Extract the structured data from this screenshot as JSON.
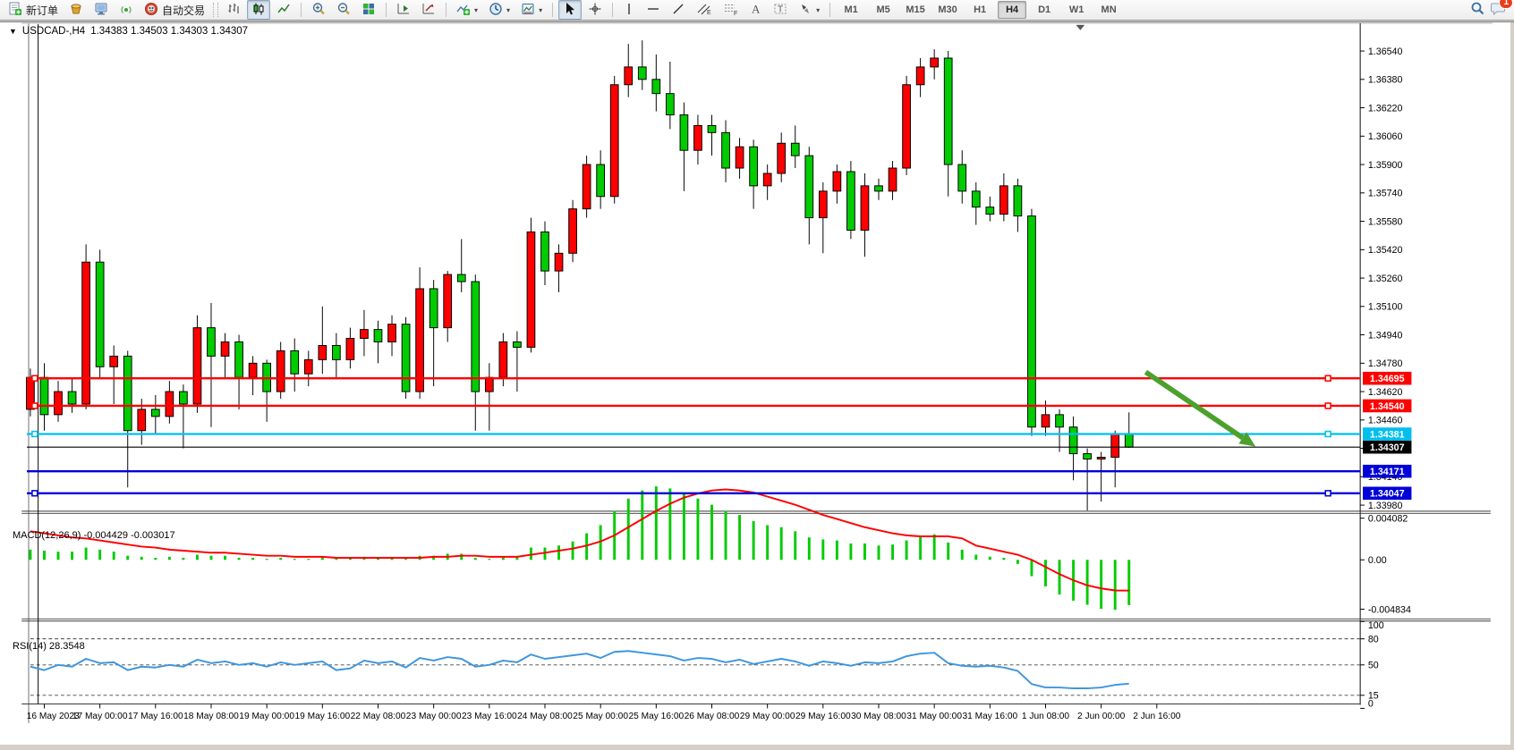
{
  "toolbar": {
    "new_order_label": "新订单",
    "autotrading_label": "自动交易",
    "timeframes": [
      "M1",
      "M5",
      "M15",
      "M30",
      "H1",
      "H4",
      "D1",
      "W1",
      "MN"
    ],
    "active_timeframe": "H4",
    "notification_count": "1"
  },
  "chart_header": {
    "expander": "▼",
    "symbol": "USDCAD-,H4",
    "ohlc_text": "1.34383 1.34503 1.34303 1.34307"
  },
  "chart_data": {
    "type": "candlestick",
    "symbol": "USDCAD",
    "timeframe": "H4",
    "last_ohlc": {
      "open": "1.34383",
      "high": "1.34503",
      "low": "1.34303",
      "close": "1.34307"
    },
    "price_axis_ticks": [
      "1.36540",
      "1.36380",
      "1.36220",
      "1.36060",
      "1.35900",
      "1.35740",
      "1.35580",
      "1.35420",
      "1.35260",
      "1.35100",
      "1.34940",
      "1.34780",
      "1.34620",
      "1.34460",
      "1.34300",
      "1.34140",
      "1.33980"
    ],
    "time_axis_labels": [
      "16 May 2023",
      "17 May 00:00",
      "17 May 16:00",
      "18 May 08:00",
      "19 May 00:00",
      "19 May 16:00",
      "22 May 08:00",
      "23 May 00:00",
      "23 May 16:00",
      "24 May 08:00",
      "25 May 00:00",
      "25 May 16:00",
      "26 May 08:00",
      "29 May 00:00",
      "29 May 16:00",
      "30 May 08:00",
      "31 May 00:00",
      "31 May 16:00",
      "1 Jun 08:00",
      "2 Jun 00:00",
      "2 Jun 16:00"
    ],
    "candles": [
      [
        1.3452,
        1.3475,
        1.3448,
        1.347
      ],
      [
        1.347,
        1.3478,
        1.344,
        1.3449
      ],
      [
        1.3449,
        1.3468,
        1.3445,
        1.3462
      ],
      [
        1.3462,
        1.347,
        1.345,
        1.3455
      ],
      [
        1.3455,
        1.3545,
        1.3452,
        1.3535
      ],
      [
        1.3535,
        1.3542,
        1.347,
        1.3476
      ],
      [
        1.3476,
        1.3488,
        1.3455,
        1.3482
      ],
      [
        1.3482,
        1.3485,
        1.3408,
        1.344
      ],
      [
        1.344,
        1.3458,
        1.3432,
        1.3452
      ],
      [
        1.3452,
        1.346,
        1.3438,
        1.3448
      ],
      [
        1.3448,
        1.3468,
        1.3444,
        1.3462
      ],
      [
        1.3462,
        1.3466,
        1.343,
        1.3455
      ],
      [
        1.3455,
        1.3505,
        1.345,
        1.3498
      ],
      [
        1.3498,
        1.3512,
        1.3442,
        1.3482
      ],
      [
        1.3482,
        1.3495,
        1.347,
        1.349
      ],
      [
        1.349,
        1.3494,
        1.3452,
        1.347
      ],
      [
        1.347,
        1.3482,
        1.346,
        1.3478
      ],
      [
        1.3478,
        1.348,
        1.3445,
        1.3462
      ],
      [
        1.3462,
        1.349,
        1.3458,
        1.3485
      ],
      [
        1.3485,
        1.3492,
        1.3462,
        1.3472
      ],
      [
        1.3472,
        1.3485,
        1.3465,
        1.348
      ],
      [
        1.348,
        1.351,
        1.3472,
        1.3488
      ],
      [
        1.3488,
        1.3495,
        1.347,
        1.348
      ],
      [
        1.348,
        1.3498,
        1.3475,
        1.3492
      ],
      [
        1.3492,
        1.3508,
        1.3482,
        1.3497
      ],
      [
        1.3497,
        1.3502,
        1.3478,
        1.349
      ],
      [
        1.349,
        1.3505,
        1.3482,
        1.35
      ],
      [
        1.35,
        1.3504,
        1.3458,
        1.3462
      ],
      [
        1.3462,
        1.3532,
        1.3458,
        1.352
      ],
      [
        1.352,
        1.3525,
        1.3465,
        1.3498
      ],
      [
        1.3498,
        1.353,
        1.349,
        1.3528
      ],
      [
        1.3528,
        1.3548,
        1.3518,
        1.3524
      ],
      [
        1.3524,
        1.3528,
        1.344,
        1.3462
      ],
      [
        1.3462,
        1.3478,
        1.344,
        1.347
      ],
      [
        1.347,
        1.3495,
        1.3465,
        1.349
      ],
      [
        1.349,
        1.3496,
        1.3462,
        1.3487
      ],
      [
        1.3487,
        1.356,
        1.3484,
        1.3552
      ],
      [
        1.3552,
        1.3558,
        1.3522,
        1.353
      ],
      [
        1.353,
        1.3545,
        1.3518,
        1.354
      ],
      [
        1.354,
        1.357,
        1.3535,
        1.3565
      ],
      [
        1.3565,
        1.3595,
        1.356,
        1.359
      ],
      [
        1.359,
        1.3598,
        1.3565,
        1.3572
      ],
      [
        1.3572,
        1.364,
        1.3568,
        1.3635
      ],
      [
        1.3635,
        1.3658,
        1.3628,
        1.3645
      ],
      [
        1.3645,
        1.366,
        1.3632,
        1.3638
      ],
      [
        1.3638,
        1.3652,
        1.362,
        1.363
      ],
      [
        1.363,
        1.3648,
        1.361,
        1.3618
      ],
      [
        1.3618,
        1.3625,
        1.3575,
        1.3598
      ],
      [
        1.3598,
        1.3618,
        1.359,
        1.3612
      ],
      [
        1.3612,
        1.3618,
        1.3595,
        1.3608
      ],
      [
        1.3608,
        1.3615,
        1.358,
        1.3588
      ],
      [
        1.3588,
        1.3605,
        1.3582,
        1.36
      ],
      [
        1.36,
        1.3604,
        1.3565,
        1.3578
      ],
      [
        1.3578,
        1.359,
        1.357,
        1.3585
      ],
      [
        1.3585,
        1.3608,
        1.358,
        1.3602
      ],
      [
        1.3602,
        1.3612,
        1.3588,
        1.3595
      ],
      [
        1.3595,
        1.36,
        1.3545,
        1.356
      ],
      [
        1.356,
        1.358,
        1.354,
        1.3575
      ],
      [
        1.3575,
        1.359,
        1.3568,
        1.3586
      ],
      [
        1.3586,
        1.3592,
        1.3548,
        1.3553
      ],
      [
        1.3553,
        1.3585,
        1.3538,
        1.3578
      ],
      [
        1.3578,
        1.3582,
        1.357,
        1.3575
      ],
      [
        1.3575,
        1.3592,
        1.357,
        1.3588
      ],
      [
        1.3588,
        1.364,
        1.3584,
        1.3635
      ],
      [
        1.3635,
        1.365,
        1.3628,
        1.3645
      ],
      [
        1.3645,
        1.3655,
        1.3638,
        1.365
      ],
      [
        1.365,
        1.3654,
        1.3572,
        1.359
      ],
      [
        1.359,
        1.3598,
        1.3568,
        1.3575
      ],
      [
        1.3575,
        1.358,
        1.3556,
        1.3566
      ],
      [
        1.3566,
        1.3572,
        1.3558,
        1.3562
      ],
      [
        1.3562,
        1.3585,
        1.3558,
        1.3578
      ],
      [
        1.3578,
        1.3582,
        1.3552,
        1.3561
      ],
      [
        1.3561,
        1.3565,
        1.3437,
        1.3442
      ],
      [
        1.3442,
        1.3457,
        1.3437,
        1.3449
      ],
      [
        1.3449,
        1.3452,
        1.3428,
        1.3442
      ],
      [
        1.3442,
        1.3448,
        1.3412,
        1.3427
      ],
      [
        1.3427,
        1.343,
        1.3395,
        1.3424
      ],
      [
        1.3424,
        1.3428,
        1.34,
        1.3425
      ],
      [
        1.3425,
        1.344,
        1.3408,
        1.3438
      ],
      [
        1.34383,
        1.34503,
        1.34303,
        1.34307
      ]
    ],
    "levels": [
      {
        "label": "1.34695",
        "value": 1.34695,
        "color": "#FF0000",
        "handles": true
      },
      {
        "label": "1.34540",
        "value": 1.3454,
        "color": "#FF0000",
        "handles": true
      },
      {
        "label": "1.34381",
        "value": 1.34381,
        "color": "#00BFEF",
        "handles": true
      },
      {
        "label": "1.34171",
        "value": 1.34171,
        "color": "#0000D8",
        "handles": false
      },
      {
        "label": "1.34047",
        "value": 1.34047,
        "color": "#0000D8",
        "handles": true
      }
    ],
    "current_price": {
      "label": "1.34307",
      "value": 1.34307,
      "color": "#000000"
    },
    "macd": {
      "label": "MACD(12,26,9) -0.004429 -0.003017",
      "scale_ticks": [
        "0.004082",
        "0.00",
        "-0.004834"
      ],
      "scale_values": [
        0.004082,
        0,
        -0.004834
      ],
      "histogram": [
        0.001,
        0.0009,
        0.0008,
        0.0008,
        0.0012,
        0.001,
        0.0008,
        0.0004,
        0.0003,
        0.0002,
        0.0003,
        0.0002,
        0.0005,
        0.0004,
        0.0004,
        0.0002,
        0.0002,
        0.0001,
        0.0002,
        0.0001,
        0.0001,
        0.0003,
        0.0002,
        0.0002,
        0.0003,
        0.0002,
        0.0003,
        0.0001,
        0.0004,
        0.0004,
        0.0006,
        0.0006,
        0.0002,
        0.0001,
        0.0003,
        0.0003,
        0.0012,
        0.0012,
        0.0014,
        0.0018,
        0.0026,
        0.0034,
        0.0048,
        0.006,
        0.0068,
        0.0072,
        0.007,
        0.0066,
        0.006,
        0.0054,
        0.0048,
        0.0044,
        0.0038,
        0.0034,
        0.0032,
        0.0028,
        0.0022,
        0.002,
        0.0019,
        0.0016,
        0.0016,
        0.0014,
        0.0015,
        0.0019,
        0.0023,
        0.0025,
        0.0017,
        0.001,
        0.0005,
        0.0003,
        0.0002,
        -0.0004,
        -0.0016,
        -0.0026,
        -0.0034,
        -0.004,
        -0.0044,
        -0.0048,
        -0.0049,
        -0.004429
      ],
      "signal": [
        0.0028,
        0.0026,
        0.0024,
        0.0022,
        0.0021,
        0.0019,
        0.0017,
        0.0015,
        0.0013,
        0.0012,
        0.001,
        0.0009,
        0.0008,
        0.0007,
        0.0007,
        0.0006,
        0.0005,
        0.0004,
        0.0004,
        0.0003,
        0.0003,
        0.0003,
        0.0002,
        0.0002,
        0.0002,
        0.0002,
        0.0002,
        0.0002,
        0.0002,
        0.0003,
        0.0003,
        0.0004,
        0.0004,
        0.0003,
        0.0003,
        0.0003,
        0.0005,
        0.0007,
        0.0009,
        0.0011,
        0.0014,
        0.0018,
        0.0024,
        0.0032,
        0.004,
        0.0048,
        0.0055,
        0.0061,
        0.0065,
        0.0068,
        0.0069,
        0.0068,
        0.0066,
        0.0062,
        0.0058,
        0.0054,
        0.0049,
        0.0044,
        0.004,
        0.0036,
        0.0032,
        0.0029,
        0.0026,
        0.0024,
        0.0023,
        0.0023,
        0.0023,
        0.0021,
        0.0014,
        0.0011,
        0.0008,
        0.0005,
        0.0,
        -0.0007,
        -0.0014,
        -0.002,
        -0.0025,
        -0.0028,
        -0.003,
        -0.003017
      ]
    },
    "rsi": {
      "label": "RSI(14) 28.3548",
      "scale_ticks": [
        "100",
        "80",
        "50",
        "15",
        "0"
      ],
      "scale_values": [
        100,
        80,
        50,
        15,
        0
      ],
      "dashed_levels": [
        80,
        50,
        15
      ],
      "values": [
        48,
        44,
        50,
        48,
        57,
        52,
        53,
        44,
        48,
        47,
        50,
        48,
        56,
        52,
        54,
        50,
        52,
        48,
        53,
        50,
        52,
        54,
        44,
        46,
        55,
        52,
        54,
        47,
        58,
        55,
        59,
        57,
        48,
        50,
        55,
        53,
        62,
        57,
        59,
        61,
        63,
        58,
        65,
        66,
        64,
        62,
        60,
        55,
        58,
        57,
        53,
        56,
        51,
        54,
        57,
        54,
        49,
        54,
        52,
        49,
        53,
        52,
        54,
        60,
        63,
        64,
        52,
        49,
        48,
        49,
        47,
        43,
        28,
        24,
        24,
        23,
        23,
        24,
        27,
        28.35
      ],
      "current_value": 28.3548
    },
    "annotations": {
      "arrow": {
        "from_index": 80.2,
        "from_price": 1.3473,
        "to_index": 88.1,
        "to_price": 1.3431
      },
      "vertical_line_index": 0.56
    },
    "colors": {
      "bull": "#FF0000",
      "bear": "#00CC00",
      "wick": "#000000",
      "macd_histogram": "#00CC00",
      "macd_signal": "#FF0000",
      "rsi_line": "#3E96DD",
      "arrow": "#4CA12C",
      "axis_text": "#000000"
    }
  }
}
